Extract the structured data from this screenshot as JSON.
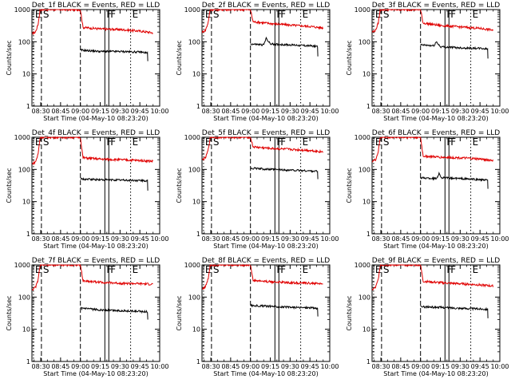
{
  "colors": {
    "events": "#000000",
    "lld": "#e00000",
    "axis": "#000000",
    "background": "#ffffff"
  },
  "panels": [
    {
      "title": "Det_1f BLACK = Events, RED = LLD",
      "xlabel": "Start Time (04-May-10 08:23:20)",
      "ylabel": "Counts/sec"
    },
    {
      "title": "Det_2f BLACK = Events, RED = LLD",
      "xlabel": "Start Time (04-May-10 08:23:20)",
      "ylabel": "Counts/sec"
    },
    {
      "title": "Det_3f BLACK = Events, RED = LLD",
      "xlabel": "Start Time (04-May-10 08:23:20)",
      "ylabel": "Counts/sec"
    },
    {
      "title": "Det_4f BLACK = Events, RED = LLD",
      "xlabel": "Start Time (04-May-10 08:23:20)",
      "ylabel": "Counts/sec"
    },
    {
      "title": "Det_5f BLACK = Events, RED = LLD",
      "xlabel": "Start Time (04-May-10 08:23:20)",
      "ylabel": "Counts/sec"
    },
    {
      "title": "Det_6f BLACK = Events, RED = LLD",
      "xlabel": "Start Time (04-May-10 08:23:20)",
      "ylabel": "Counts/sec"
    },
    {
      "title": "Det_7f BLACK = Events, RED = LLD",
      "xlabel": "Start Time (04-May-10 08:23:20)",
      "ylabel": "Counts/sec"
    },
    {
      "title": "Det_8f BLACK = Events, RED = LLD",
      "xlabel": "Start Time (04-May-10 08:23:20)",
      "ylabel": "Counts/sec"
    },
    {
      "title": "Det_9f BLACK = Events, RED = LLD",
      "xlabel": "Start Time (04-May-10 08:23:20)",
      "ylabel": "Counts/sec"
    }
  ],
  "chart_data": {
    "type": "line",
    "layout": "3x3 small multiples",
    "x_ticks": [
      "08:30",
      "08:45",
      "09:00",
      "09:15",
      "09:30",
      "09:45",
      "10:00"
    ],
    "x_tick_minutes": [
      30,
      45,
      60,
      75,
      90,
      105,
      120
    ],
    "xlim_minutes": [
      23.33,
      120
    ],
    "y_scale": "log",
    "y_ticks": [
      "1",
      "10",
      "100",
      "1000"
    ],
    "ylim": [
      1,
      1000
    ],
    "markers": [
      {
        "label": "E",
        "minute": 24.5,
        "style": "dotted"
      },
      {
        "label": "S",
        "minute": 30.5,
        "style": "dashed"
      },
      {
        "label": "",
        "minute": 60.0,
        "style": "dashed"
      },
      {
        "label": "F",
        "minute": 78.5,
        "style": "solid"
      },
      {
        "label": "F",
        "minute": 81.5,
        "style": "solid"
      },
      {
        "label": "E",
        "minute": 98.0,
        "style": "dotted"
      }
    ],
    "series": [
      {
        "name": "LLD",
        "color": "red"
      },
      {
        "name": "Events",
        "color": "black"
      }
    ],
    "panels": [
      {
        "lld": [
          [
            23.5,
            180
          ],
          [
            26,
            200
          ],
          [
            28,
            350
          ],
          [
            29.5,
            1000
          ],
          [
            60,
            1000
          ],
          [
            62,
            280
          ],
          [
            75,
            250
          ],
          [
            90,
            240
          ],
          [
            105,
            215
          ],
          [
            115,
            190
          ]
        ],
        "events": [
          [
            60,
            55
          ],
          [
            75,
            50
          ],
          [
            90,
            50
          ],
          [
            105,
            48
          ],
          [
            111,
            45
          ]
        ],
        "events_tail": 25
      },
      {
        "lld": [
          [
            23.5,
            200
          ],
          [
            26,
            230
          ],
          [
            28,
            400
          ],
          [
            29.5,
            1000
          ],
          [
            60,
            1000
          ],
          [
            62,
            420
          ],
          [
            75,
            370
          ],
          [
            90,
            330
          ],
          [
            105,
            300
          ],
          [
            115,
            270
          ]
        ],
        "events": [
          [
            60,
            85
          ],
          [
            70,
            80
          ],
          [
            72,
            130
          ],
          [
            75,
            85
          ],
          [
            90,
            80
          ],
          [
            105,
            75
          ],
          [
            111,
            72
          ]
        ],
        "events_tail": 35
      },
      {
        "lld": [
          [
            23.5,
            200
          ],
          [
            26,
            230
          ],
          [
            28,
            380
          ],
          [
            29.5,
            1000
          ],
          [
            60,
            1000
          ],
          [
            62,
            380
          ],
          [
            75,
            320
          ],
          [
            90,
            290
          ],
          [
            105,
            260
          ],
          [
            115,
            230
          ]
        ],
        "events": [
          [
            60,
            80
          ],
          [
            70,
            75
          ],
          [
            72,
            100
          ],
          [
            75,
            70
          ],
          [
            90,
            65
          ],
          [
            105,
            62
          ],
          [
            111,
            60
          ]
        ],
        "events_tail": 30
      },
      {
        "lld": [
          [
            23.5,
            150
          ],
          [
            26,
            170
          ],
          [
            28,
            300
          ],
          [
            29.5,
            1000
          ],
          [
            60,
            1000
          ],
          [
            62,
            230
          ],
          [
            75,
            210
          ],
          [
            90,
            200
          ],
          [
            105,
            190
          ],
          [
            115,
            180
          ]
        ],
        "events": [
          [
            60,
            50
          ],
          [
            75,
            48
          ],
          [
            90,
            47
          ],
          [
            105,
            45
          ],
          [
            111,
            44
          ]
        ],
        "events_tail": 22
      },
      {
        "lld": [
          [
            23.5,
            200
          ],
          [
            26,
            230
          ],
          [
            28,
            400
          ],
          [
            29.5,
            1000
          ],
          [
            60,
            1000
          ],
          [
            62,
            500
          ],
          [
            75,
            450
          ],
          [
            90,
            420
          ],
          [
            105,
            390
          ],
          [
            115,
            350
          ]
        ],
        "events": [
          [
            60,
            110
          ],
          [
            75,
            100
          ],
          [
            90,
            95
          ],
          [
            105,
            90
          ],
          [
            111,
            88
          ]
        ],
        "events_tail": 50
      },
      {
        "lld": [
          [
            23.5,
            180
          ],
          [
            26,
            200
          ],
          [
            28,
            350
          ],
          [
            29.5,
            1000
          ],
          [
            60,
            1000
          ],
          [
            62,
            260
          ],
          [
            75,
            240
          ],
          [
            90,
            230
          ],
          [
            105,
            210
          ],
          [
            115,
            190
          ]
        ],
        "events": [
          [
            60,
            55
          ],
          [
            72,
            52
          ],
          [
            74,
            75
          ],
          [
            76,
            55
          ],
          [
            90,
            52
          ],
          [
            105,
            48
          ],
          [
            111,
            46
          ]
        ],
        "events_tail": 25
      },
      {
        "lld": [
          [
            23.5,
            170
          ],
          [
            26,
            200
          ],
          [
            28,
            340
          ],
          [
            29.5,
            1000
          ],
          [
            60,
            1000
          ],
          [
            62,
            320
          ],
          [
            75,
            290
          ],
          [
            90,
            270
          ],
          [
            105,
            260
          ],
          [
            115,
            250
          ]
        ],
        "events": [
          [
            60,
            45
          ],
          [
            75,
            40
          ],
          [
            90,
            38
          ],
          [
            105,
            36
          ],
          [
            111,
            35
          ]
        ],
        "events_tail": 20
      },
      {
        "lld": [
          [
            23.5,
            180
          ],
          [
            26,
            210
          ],
          [
            28,
            370
          ],
          [
            29.5,
            1000
          ],
          [
            60,
            1000
          ],
          [
            62,
            330
          ],
          [
            75,
            300
          ],
          [
            90,
            280
          ],
          [
            105,
            270
          ],
          [
            115,
            260
          ]
        ],
        "events": [
          [
            60,
            55
          ],
          [
            75,
            52
          ],
          [
            90,
            48
          ],
          [
            105,
            47
          ],
          [
            111,
            45
          ]
        ],
        "events_tail": 25
      },
      {
        "lld": [
          [
            23.5,
            170
          ],
          [
            26,
            200
          ],
          [
            28,
            350
          ],
          [
            29.5,
            1000
          ],
          [
            60,
            1000
          ],
          [
            62,
            310
          ],
          [
            75,
            280
          ],
          [
            90,
            260
          ],
          [
            105,
            240
          ],
          [
            115,
            220
          ]
        ],
        "events": [
          [
            60,
            50
          ],
          [
            75,
            48
          ],
          [
            90,
            45
          ],
          [
            105,
            43
          ],
          [
            111,
            42
          ]
        ],
        "events_tail": 22
      }
    ]
  }
}
